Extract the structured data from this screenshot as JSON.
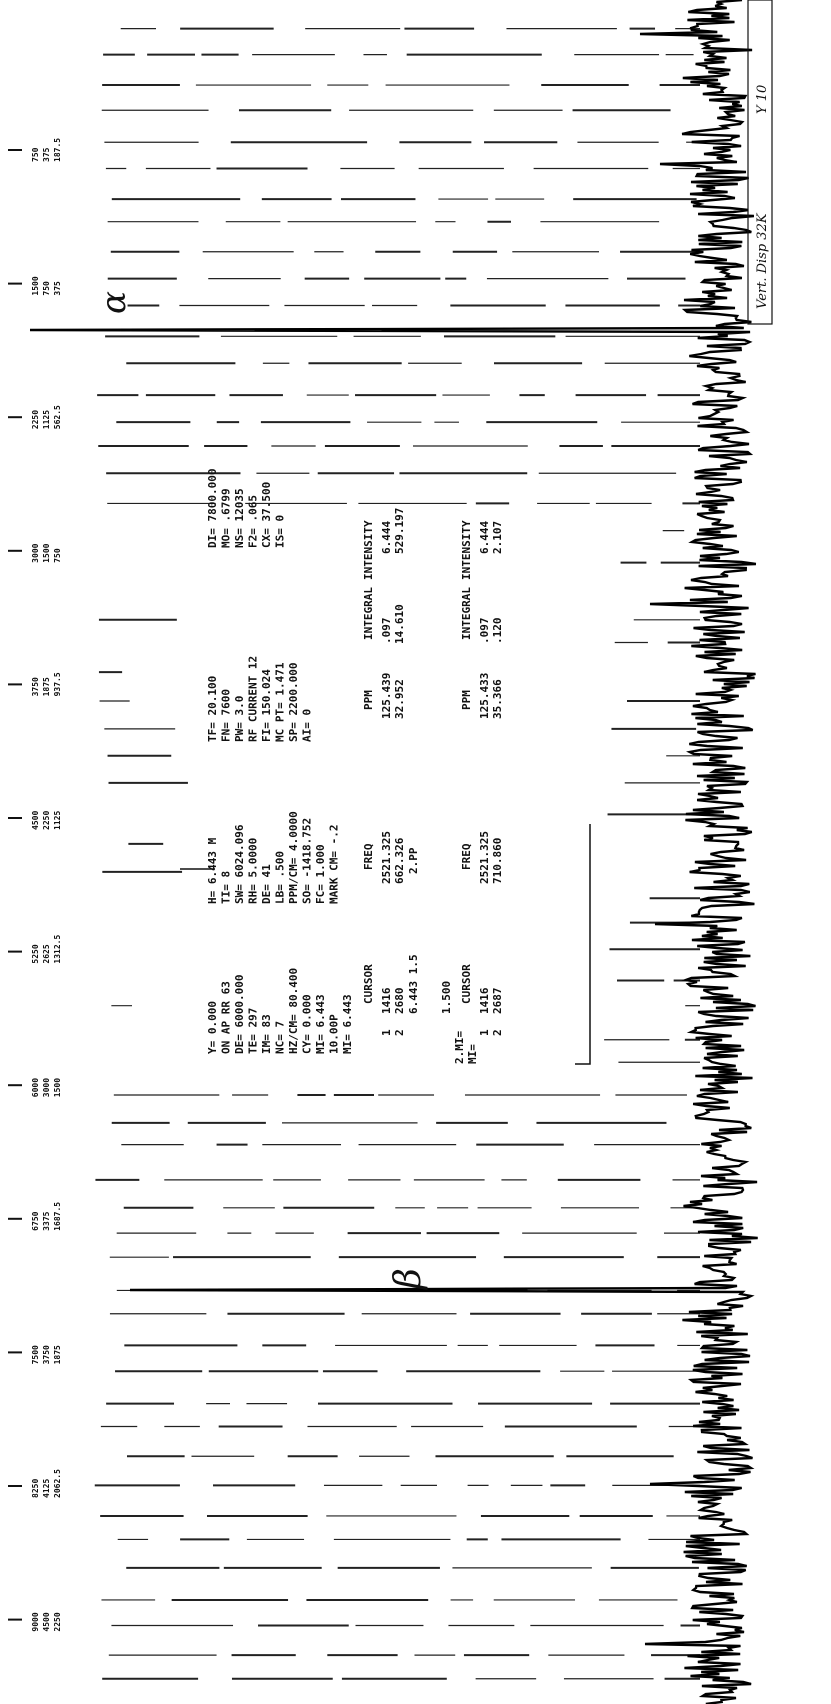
{
  "scale_labels": [
    [
      "750",
      "375",
      "187.5"
    ],
    [
      "1500",
      "750",
      "375"
    ],
    [
      "2250",
      "1125",
      "562.5"
    ],
    [
      "3000",
      "1500",
      "750"
    ],
    [
      "3750",
      "1875",
      "937.5"
    ],
    [
      "4500",
      "2250",
      "1125"
    ],
    [
      "5250",
      "2625",
      "1312.5"
    ],
    [
      "6000",
      "3000",
      "1500"
    ],
    [
      "6750",
      "3375",
      "1687.5"
    ],
    [
      "7500",
      "3750",
      "1875"
    ],
    [
      "8250",
      "4125",
      "2062.5"
    ],
    [
      "9000",
      "4500",
      "2250"
    ]
  ],
  "parameters": {
    "col1": [
      "Y=  0.000",
      "ON AP RR 63",
      "DE=  6000.000",
      "TE=  297",
      "IM=  83",
      "NC=  7",
      "HZ/CM=  80.400",
      "CY=  0.000",
      "MI=  6.443",
      "10.00P",
      "MI=  6.443"
    ],
    "col2": [
      "H=  6.443 M",
      "TI=  8",
      "SW=  6024.096",
      "RH=  5.0000",
      "DE=  41",
      "LB=  .500",
      "PPM/CM=  4.0000",
      "SO=  -1418.752",
      "FC=  1.000",
      "MARK CM=  -.2"
    ],
    "col3": [
      "TF=  20.100",
      "FN=  7600",
      "PW=  3.0",
      "RF CURRENT 12",
      "FI=  150.024",
      "MC PT=  1.471",
      "SP=  2200.000",
      "AI=  0"
    ],
    "col4": [
      "DI=  7800.000",
      "MO=  .6799",
      "NS=  12035",
      "F2=  .065",
      "CX=  37.500",
      "IS=  0"
    ]
  },
  "tables": [
    {
      "header": [
        "CURSOR",
        "FREQ",
        "PPM",
        "INTEGRAL",
        "INTENSITY"
      ],
      "rows": [
        [
          "1",
          "1416",
          "2521.325",
          "125.439",
          ".097",
          "6.444"
        ],
        [
          "2",
          "2680",
          "662.326",
          "32.952",
          "14.610",
          "529.197"
        ]
      ],
      "footer": [
        "6.443 1.5",
        "2.PP"
      ]
    },
    {
      "header": [
        "CURSOR",
        "FREQ",
        "PPM",
        "INTEGRAL",
        "INTENSITY"
      ],
      "rows": [
        [
          "1",
          "1416",
          "2521.325",
          "125.433",
          ".097",
          "6.444"
        ],
        [
          "2",
          "2687",
          "710.860",
          "35.366",
          ".120",
          "2.107"
        ]
      ]
    }
  ],
  "side_labels": [
    "1.500",
    "2.MI=",
    "MI="
  ],
  "annotations": {
    "alpha": "α",
    "beta": "β",
    "display": "Vert. Disp  32K",
    "corner": "Y 10"
  }
}
